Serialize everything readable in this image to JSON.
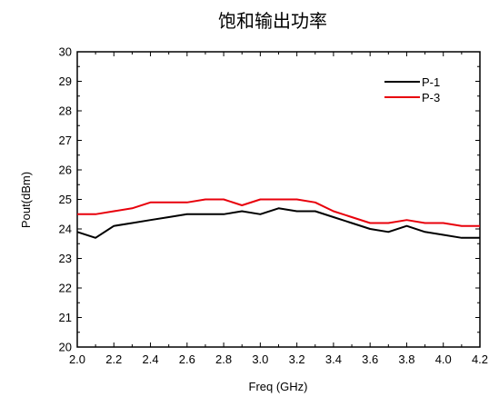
{
  "chart_data": {
    "type": "line",
    "title": "饱和输出功率",
    "xlabel": "Freq (GHz)",
    "ylabel": "Pout(dBm)",
    "xlim": [
      2.0,
      4.2
    ],
    "ylim": [
      20,
      30
    ],
    "x_ticks": [
      "2.0",
      "2.2",
      "2.4",
      "2.6",
      "2.8",
      "3.0",
      "3.2",
      "3.4",
      "3.6",
      "3.8",
      "4.0",
      "4.2"
    ],
    "y_ticks": [
      "20",
      "21",
      "22",
      "23",
      "24",
      "25",
      "26",
      "27",
      "28",
      "29",
      "30"
    ],
    "grid": false,
    "legend_position": "top-right",
    "x": [
      2.0,
      2.1,
      2.2,
      2.3,
      2.4,
      2.5,
      2.6,
      2.7,
      2.8,
      2.9,
      3.0,
      3.1,
      3.2,
      3.3,
      3.4,
      3.5,
      3.6,
      3.7,
      3.8,
      3.9,
      4.0,
      4.1,
      4.2
    ],
    "series": [
      {
        "name": "P-1",
        "color": "#000000",
        "values": [
          23.9,
          23.7,
          24.1,
          24.2,
          24.3,
          24.4,
          24.5,
          24.5,
          24.5,
          24.6,
          24.5,
          24.7,
          24.6,
          24.6,
          24.4,
          24.2,
          24.0,
          23.9,
          24.1,
          23.9,
          23.8,
          23.7,
          23.7
        ]
      },
      {
        "name": "P-3",
        "color": "#e8000b",
        "values": [
          24.5,
          24.5,
          24.6,
          24.7,
          24.9,
          24.9,
          24.9,
          25.0,
          25.0,
          24.8,
          25.0,
          25.0,
          25.0,
          24.9,
          24.6,
          24.4,
          24.2,
          24.2,
          24.3,
          24.2,
          24.2,
          24.1,
          24.1
        ]
      }
    ]
  }
}
